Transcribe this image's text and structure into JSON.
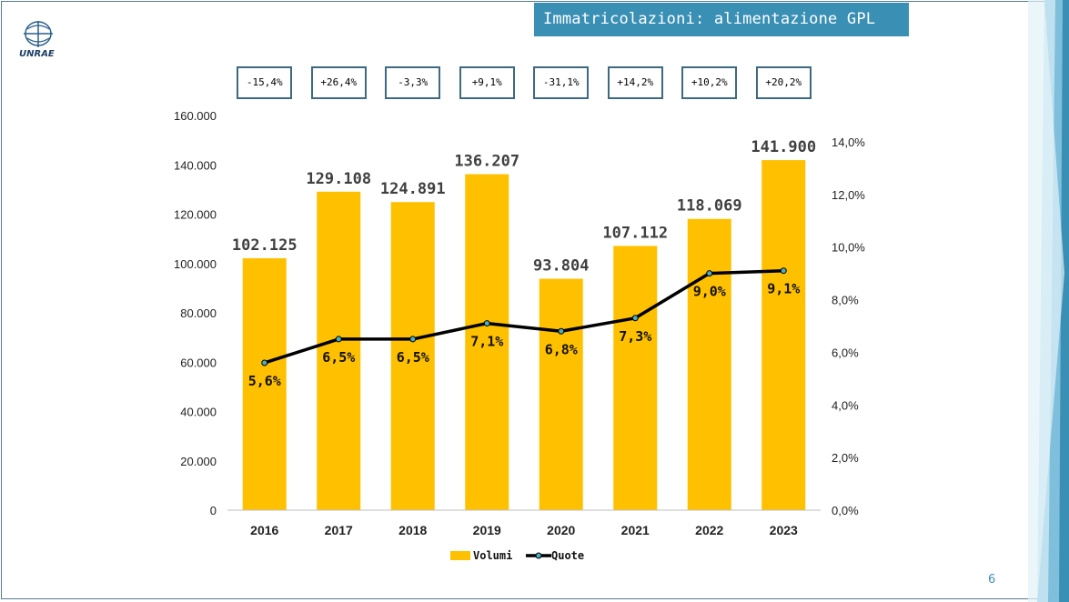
{
  "slide": {
    "title": "Immatricolazioni: alimentazione GPL",
    "page_number": "6",
    "logo_text": "UNRAE",
    "accent_color": "#3a8fb5"
  },
  "chart_data": {
    "type": "bar",
    "categories": [
      "2016",
      "2017",
      "2018",
      "2019",
      "2020",
      "2021",
      "2022",
      "2023"
    ],
    "series": [
      {
        "name": "Volumi",
        "type": "bar",
        "axis": "left",
        "color": "#ffc000",
        "values": [
          102125,
          129108,
          124891,
          136207,
          93804,
          107112,
          118069,
          141900
        ],
        "labels": [
          "102.125",
          "129.108",
          "124.891",
          "136.207",
          "93.804",
          "107.112",
          "118.069",
          "141.900"
        ]
      },
      {
        "name": "Quote",
        "type": "line",
        "axis": "right",
        "color": "#000000",
        "values": [
          5.6,
          6.5,
          6.5,
          7.1,
          6.8,
          7.3,
          9.0,
          9.1
        ],
        "labels": [
          "5,6%",
          "6,5%",
          "6,5%",
          "7,1%",
          "6,8%",
          "7,3%",
          "9,0%",
          "9,1%"
        ]
      }
    ],
    "growth_labels": [
      "-15,4%",
      "+26,4%",
      "-3,3%",
      "+9,1%",
      "-31,1%",
      "+14,2%",
      "+10,2%",
      "+20,2%"
    ],
    "left_axis": {
      "ylim": [
        0,
        160000
      ],
      "ticks": [
        0,
        20000,
        40000,
        60000,
        80000,
        100000,
        120000,
        140000,
        160000
      ],
      "tick_labels": [
        "0",
        "20.000",
        "40.000",
        "60.000",
        "80.000",
        "100.000",
        "120.000",
        "140.000",
        "160.000"
      ]
    },
    "right_axis": {
      "ylim": [
        0,
        15
      ],
      "ticks": [
        0,
        2,
        4,
        6,
        8,
        10,
        12,
        14
      ],
      "tick_labels": [
        "0,0%",
        "2,0%",
        "4,0%",
        "6,0%",
        "8,0%",
        "10,0%",
        "12,0%",
        "14,0%"
      ]
    },
    "legend": {
      "placement": "bottom",
      "entries": [
        "Volumi",
        "Quote"
      ]
    },
    "grid": false
  }
}
